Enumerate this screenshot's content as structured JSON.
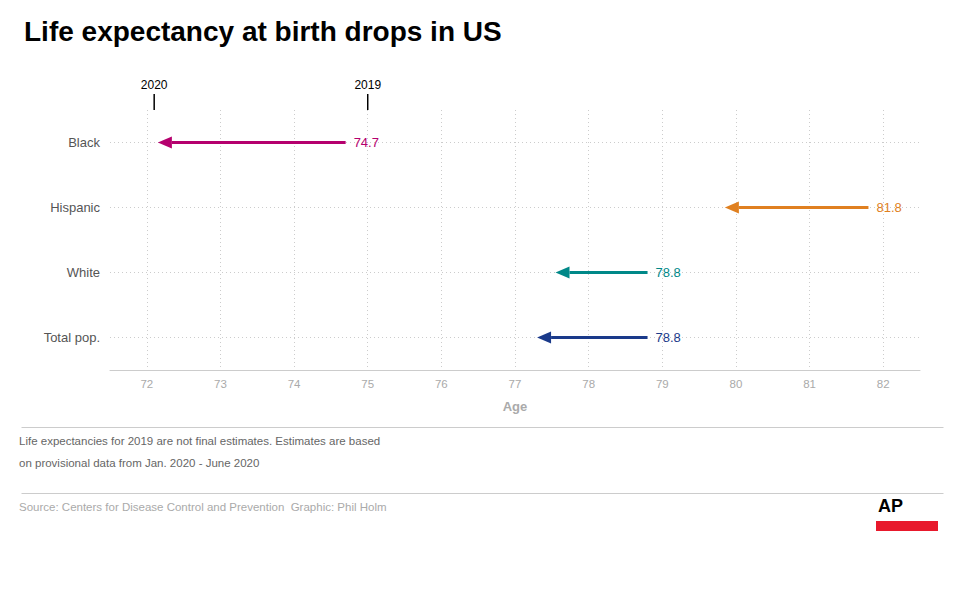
{
  "chart_data": {
    "type": "arrow",
    "title": "Life expectancy at birth drops in US",
    "xlabel": "Age",
    "xlim": [
      71.5,
      82.5
    ],
    "xticks": [
      72,
      73,
      74,
      75,
      76,
      77,
      78,
      79,
      80,
      81,
      82
    ],
    "grid": true,
    "categories": [
      "Black",
      "Hispanic",
      "White",
      "Total pop."
    ],
    "series": [
      {
        "name": "2019",
        "values": [
          74.7,
          81.8,
          78.8,
          78.8
        ],
        "value_labels": [
          "74.7",
          "81.8",
          "78.8",
          "78.8"
        ]
      },
      {
        "name": "2020",
        "values": [
          72.15,
          79.85,
          77.55,
          77.3
        ]
      }
    ],
    "colors": [
      "#b5006e",
      "#e08020",
      "#008888",
      "#1a3a8a"
    ],
    "annotations": [
      {
        "text": "2020",
        "x": 72.1
      },
      {
        "text": "2019",
        "x": 75.0
      }
    ],
    "footnote": [
      "Life expectancies for 2019 are not final estimates. Estimates are based",
      "on provisional data from Jan. 2020 - June 2020"
    ],
    "source": "Source: Centers for Disease Control and Prevention  Graphic: Phil Holm",
    "logo": "AP"
  }
}
